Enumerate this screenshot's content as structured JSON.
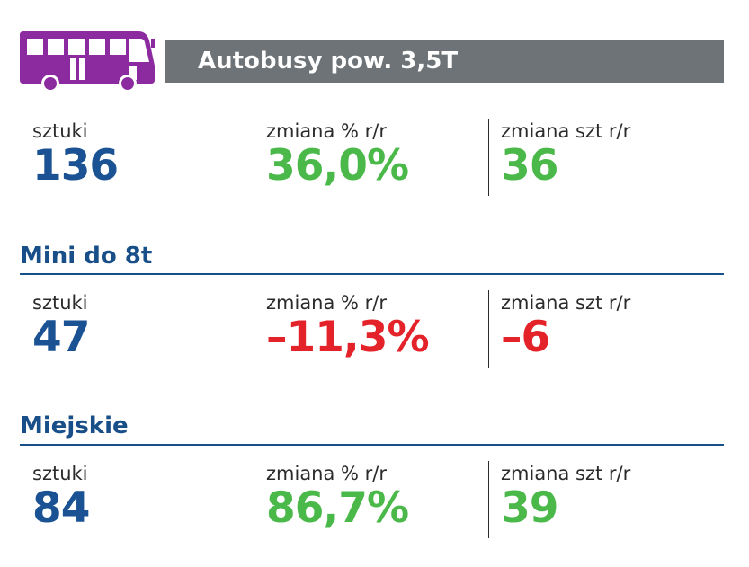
{
  "header": {
    "title": "Autobusy pow. 3,5T",
    "icon": "bus-icon"
  },
  "colors": {
    "purple": "#8c2a9f",
    "blue": "#1a5293",
    "green": "#4bb94a",
    "red": "#e3222a",
    "grey": "#6d7377"
  },
  "sections": [
    {
      "heading": "",
      "stats": [
        {
          "label": "sztuki",
          "value": "136",
          "color": "#1a5293"
        },
        {
          "label": "zmiana % r/r",
          "value": "36,0%",
          "color": "#4bb94a"
        },
        {
          "label": "zmiana szt r/r",
          "value": "36",
          "color": "#4bb94a"
        }
      ]
    },
    {
      "heading": "Mini do 8t",
      "stats": [
        {
          "label": "sztuki",
          "value": "47",
          "color": "#1a5293"
        },
        {
          "label": "zmiana % r/r",
          "value": "–11,3%",
          "color": "#e3222a"
        },
        {
          "label": "zmiana szt r/r",
          "value": "–6",
          "color": "#e3222a"
        }
      ]
    },
    {
      "heading": "Miejskie",
      "stats": [
        {
          "label": "sztuki",
          "value": "84",
          "color": "#1a5293"
        },
        {
          "label": "zmiana % r/r",
          "value": "86,7%",
          "color": "#4bb94a"
        },
        {
          "label": "zmiana szt r/r",
          "value": "39",
          "color": "#4bb94a"
        }
      ]
    }
  ]
}
